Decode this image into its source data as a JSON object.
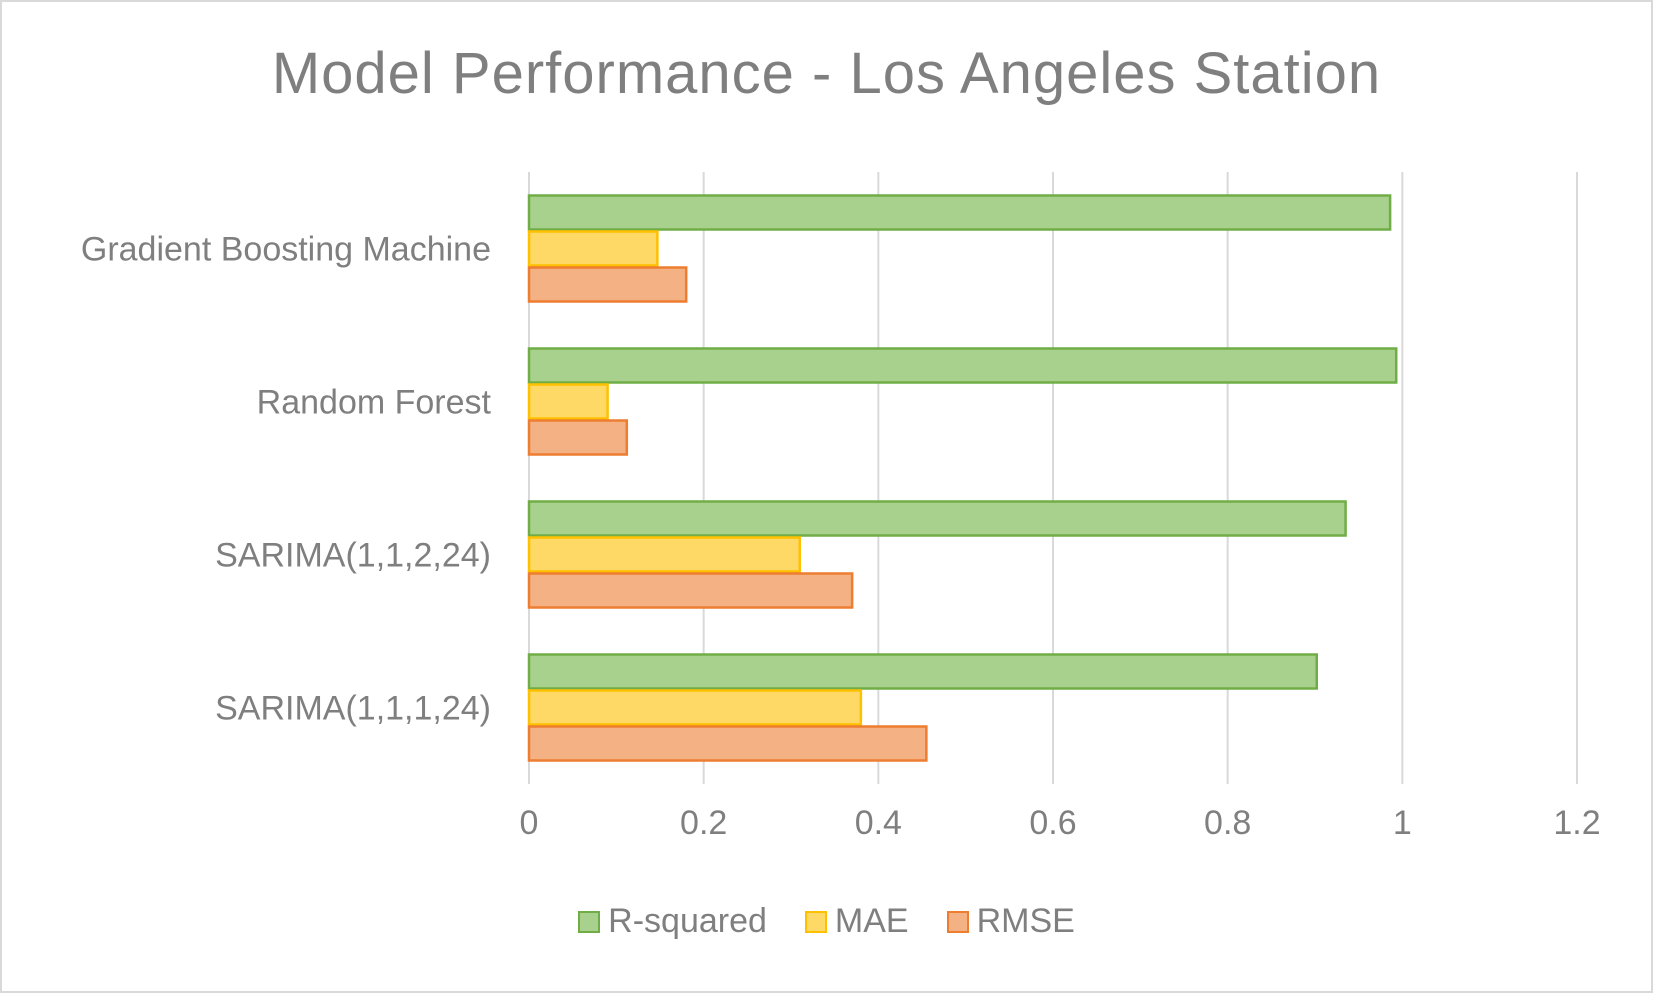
{
  "chart_data": {
    "type": "bar",
    "orientation": "horizontal",
    "title": "Model Performance - Los Angeles Station",
    "categories": [
      "Gradient Boosting Machine",
      "Random Forest",
      "SARIMA(1,1,2,24)",
      "SARIMA(1,1,1,24)"
    ],
    "series": [
      {
        "name": "R-squared",
        "values": [
          0.986,
          0.993,
          0.935,
          0.902
        ],
        "fill": "#a9d18e",
        "stroke": "#70ad47"
      },
      {
        "name": "MAE",
        "values": [
          0.147,
          0.09,
          0.31,
          0.38
        ],
        "fill": "#ffd966",
        "stroke": "#ffc000"
      },
      {
        "name": "RMSE",
        "values": [
          0.18,
          0.112,
          0.37,
          0.455
        ],
        "fill": "#f4b183",
        "stroke": "#ed7d31"
      }
    ],
    "xlim": [
      0,
      1.2
    ],
    "xticks": [
      "0",
      "0.2",
      "0.4",
      "0.6",
      "0.8",
      "1",
      "1.2"
    ],
    "grid": "vertical",
    "legend_position": "bottom"
  }
}
